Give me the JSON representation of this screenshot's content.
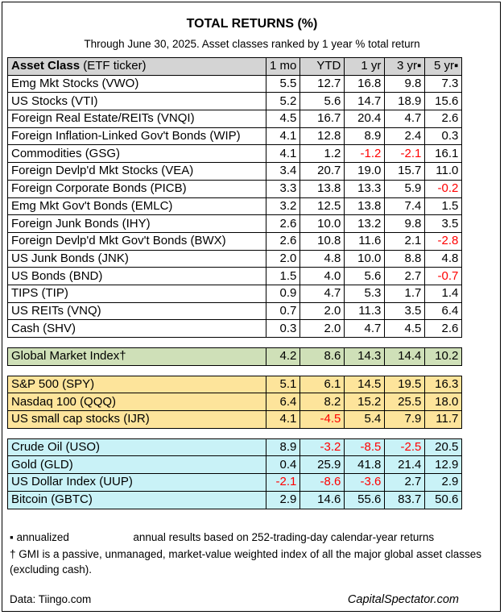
{
  "title": "TOTAL RETURNS (%)",
  "subtitle": "Through June 30, 2025. Asset classes ranked by 1 year % total return",
  "header": {
    "asset_class_bold": "Asset Class",
    "asset_class_rest": " (ETF ticker)",
    "cols": [
      "1 mo",
      "YTD",
      "1 yr",
      "3 yr▪",
      "5 yr▪"
    ]
  },
  "groups": [
    {
      "style": "plain",
      "rows": [
        {
          "name": "Emg Mkt Stocks (VWO)",
          "values": [
            "5.5",
            "12.7",
            "16.8",
            "9.8",
            "7.3"
          ]
        },
        {
          "name": "US Stocks (VTI)",
          "values": [
            "5.2",
            "5.6",
            "14.7",
            "18.9",
            "15.6"
          ]
        },
        {
          "name": "Foreign Real Estate/REITs (VNQI)",
          "values": [
            "4.5",
            "16.7",
            "20.4",
            "4.7",
            "2.6"
          ]
        },
        {
          "name": "Foreign Inflation-Linked Gov't Bonds (WIP)",
          "values": [
            "4.1",
            "12.8",
            "8.9",
            "2.4",
            "0.3"
          ]
        },
        {
          "name": "Commodities (GSG)",
          "values": [
            "4.1",
            "1.2",
            "-1.2",
            "-2.1",
            "16.1"
          ]
        },
        {
          "name": "Foreign Devlp'd Mkt Stocks (VEA)",
          "values": [
            "3.4",
            "20.7",
            "19.0",
            "15.7",
            "11.0"
          ]
        },
        {
          "name": "Foreign Corporate Bonds (PICB)",
          "values": [
            "3.3",
            "13.8",
            "13.3",
            "5.9",
            "-0.2"
          ]
        },
        {
          "name": "Emg Mkt Gov't Bonds (EMLC)",
          "values": [
            "3.2",
            "12.5",
            "13.8",
            "7.4",
            "1.5"
          ]
        },
        {
          "name": "Foreign Junk Bonds (IHY)",
          "values": [
            "2.6",
            "10.0",
            "13.2",
            "9.8",
            "3.5"
          ]
        },
        {
          "name": "Foreign Devlp'd Mkt Gov't Bonds (BWX)",
          "values": [
            "2.6",
            "10.8",
            "11.6",
            "2.1",
            "-2.8"
          ]
        },
        {
          "name": "US Junk Bonds (JNK)",
          "values": [
            "2.0",
            "4.8",
            "10.0",
            "8.8",
            "4.8"
          ]
        },
        {
          "name": "US Bonds (BND)",
          "values": [
            "1.5",
            "4.0",
            "5.6",
            "2.7",
            "-0.7"
          ]
        },
        {
          "name": "TIPS (TIP)",
          "values": [
            "0.9",
            "4.7",
            "5.3",
            "1.7",
            "1.4"
          ]
        },
        {
          "name": "US REITs (VNQ)",
          "values": [
            "0.7",
            "2.0",
            "11.3",
            "3.5",
            "6.4"
          ]
        },
        {
          "name": "Cash (SHV)",
          "values": [
            "0.3",
            "2.0",
            "4.7",
            "4.5",
            "2.6"
          ]
        }
      ]
    },
    {
      "style": "gmi",
      "rows": [
        {
          "name": "Global Market Index†",
          "values": [
            "4.2",
            "8.6",
            "14.3",
            "14.4",
            "10.2"
          ]
        }
      ]
    },
    {
      "style": "us",
      "rows": [
        {
          "name": "S&P 500 (SPY)",
          "values": [
            "5.1",
            "6.1",
            "14.5",
            "19.5",
            "16.3"
          ]
        },
        {
          "name": "Nasdaq 100 (QQQ)",
          "values": [
            "6.4",
            "8.2",
            "15.2",
            "25.5",
            "18.0"
          ]
        },
        {
          "name": "US small cap stocks (IJR)",
          "values": [
            "4.1",
            "-4.5",
            "5.4",
            "7.9",
            "11.7"
          ]
        }
      ]
    },
    {
      "style": "alt",
      "rows": [
        {
          "name": "Crude Oil (USO)",
          "values": [
            "8.9",
            "-3.2",
            "-8.5",
            "-2.5",
            "20.5"
          ]
        },
        {
          "name": "Gold (GLD)",
          "values": [
            "0.4",
            "25.9",
            "41.8",
            "21.4",
            "12.9"
          ]
        },
        {
          "name": "US Dollar Index (UUP)",
          "values": [
            "-2.1",
            "-8.6",
            "-3.6",
            "2.7",
            "2.9"
          ]
        },
        {
          "name": "Bitcoin (GBTC)",
          "values": [
            "2.9",
            "14.6",
            "55.6",
            "83.7",
            "50.6"
          ]
        }
      ]
    }
  ],
  "footnotes": {
    "annualized_label": "▪ annualized",
    "annualized_text": "annual results based on 252-trading-day calendar-year returns",
    "gmi_text": "† GMI is a passive, unmanaged, market-value weighted index of all the major global asset classes (excluding cash)."
  },
  "source_left": "Data: Tiingo.com",
  "source_right": "CapitalSpectator.com",
  "colors": {
    "negative": "#ff0000",
    "header_bg": "#d4d4d4",
    "gmi_bg": "#cfe0b8",
    "us_bg": "#fde49b",
    "alt_bg": "#c9f2f7"
  }
}
